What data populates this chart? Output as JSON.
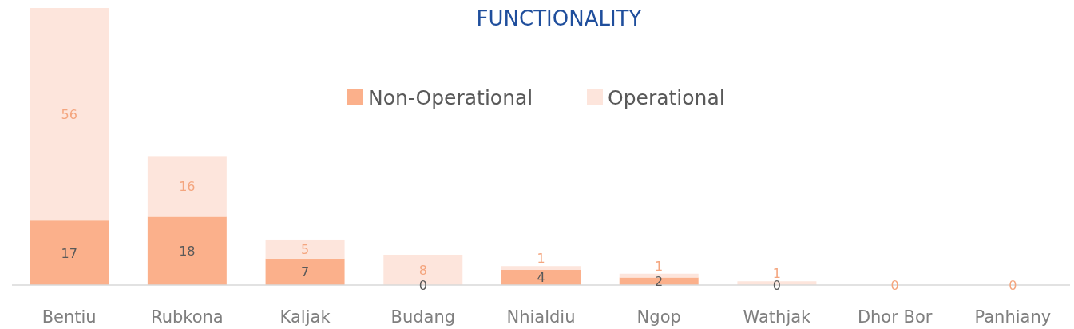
{
  "chart_data": {
    "type": "bar",
    "title": "FUNCTIONALITY",
    "stacked": true,
    "legend": "top",
    "categories": [
      "Bentiu",
      "Rubkona",
      "Kaljak",
      "Budang",
      "Nhialdiu",
      "Ngop",
      "Wathjak",
      "Dhor Bor",
      "Panhiany"
    ],
    "series": [
      {
        "name": "Non-Operational",
        "color": "#fbb08b",
        "values": [
          17,
          18,
          7,
          0,
          4,
          2,
          0,
          0,
          0
        ],
        "value_labels": [
          "17",
          "18",
          "7",
          "0",
          "4",
          "2",
          "0",
          null,
          null
        ]
      },
      {
        "name": "Operational",
        "color": "#fde5dc",
        "values": [
          56,
          16,
          5,
          8,
          1,
          1,
          1,
          0,
          0
        ],
        "value_labels": [
          "56",
          "16",
          "5",
          "8",
          "1",
          "1",
          "1",
          "0",
          "0"
        ]
      }
    ]
  }
}
